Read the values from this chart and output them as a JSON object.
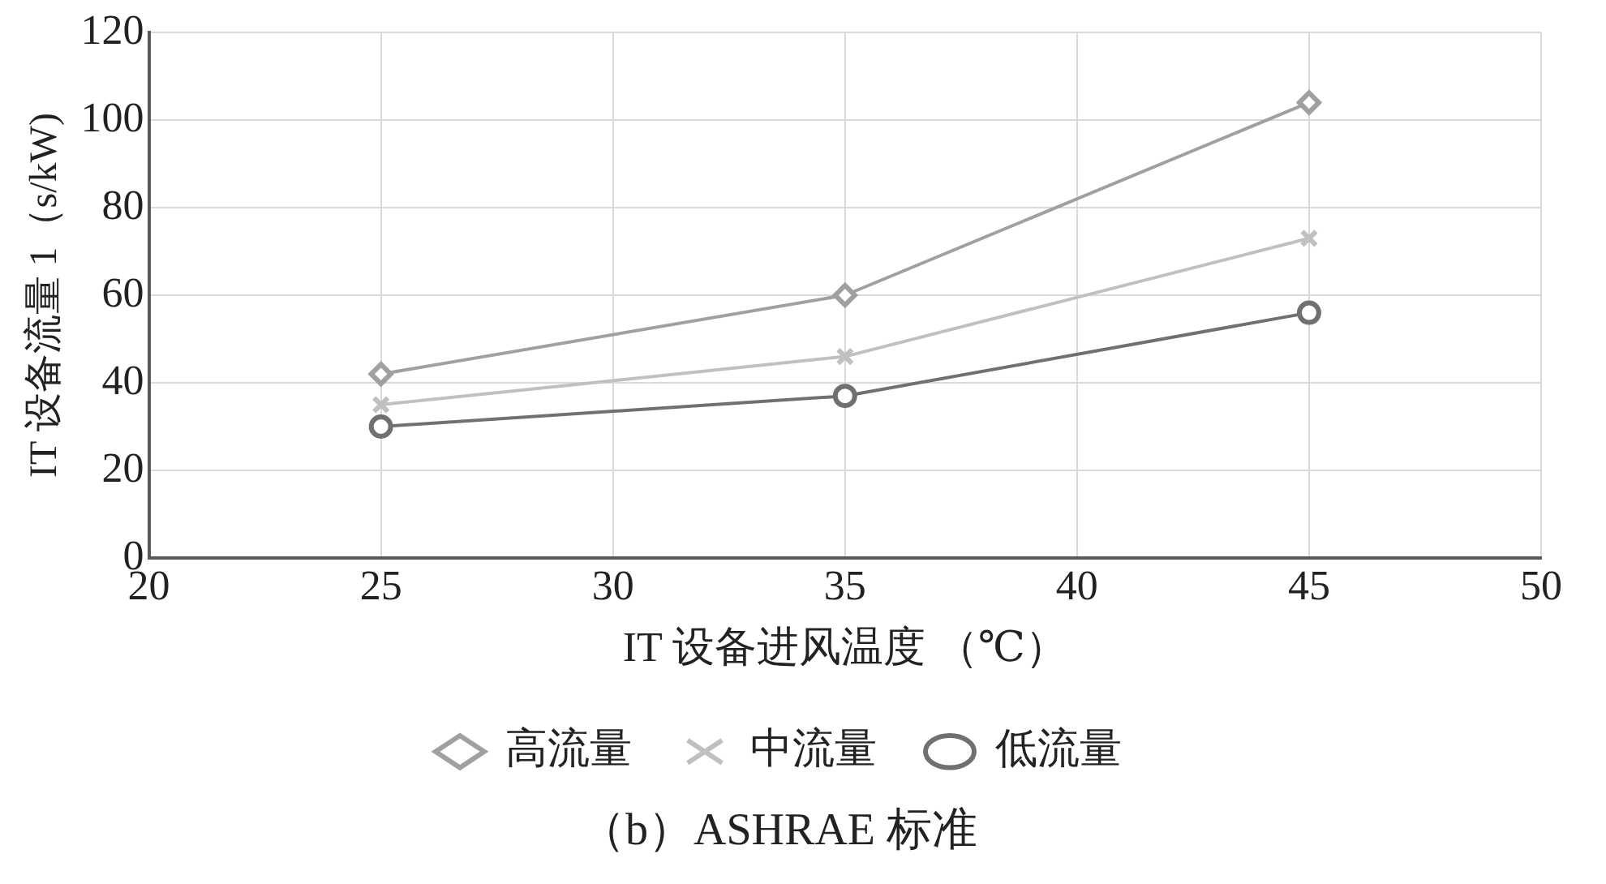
{
  "chart_data": {
    "type": "line",
    "title": "（b）ASHRAE 标准",
    "xlabel": "IT 设备进风温度 （℃）",
    "ylabel": "IT 设备流量 1（s/kW)",
    "x": [
      25,
      35,
      45
    ],
    "xlim": [
      20,
      50
    ],
    "xticks": [
      20,
      25,
      30,
      35,
      40,
      45,
      50
    ],
    "ylim": [
      0,
      120
    ],
    "yticks": [
      0,
      20,
      40,
      60,
      80,
      100,
      120
    ],
    "grid": true,
    "legend": "bottom",
    "series": [
      {
        "name": "高流量",
        "color": "#a0a0a0",
        "marker": "diamond",
        "values": [
          42,
          60,
          104
        ]
      },
      {
        "name": "中流量",
        "color": "#c0c0c0",
        "marker": "cross",
        "values": [
          35,
          46,
          73
        ]
      },
      {
        "name": "低流量",
        "color": "#707070",
        "marker": "circle",
        "values": [
          30,
          37,
          56
        ]
      }
    ]
  }
}
